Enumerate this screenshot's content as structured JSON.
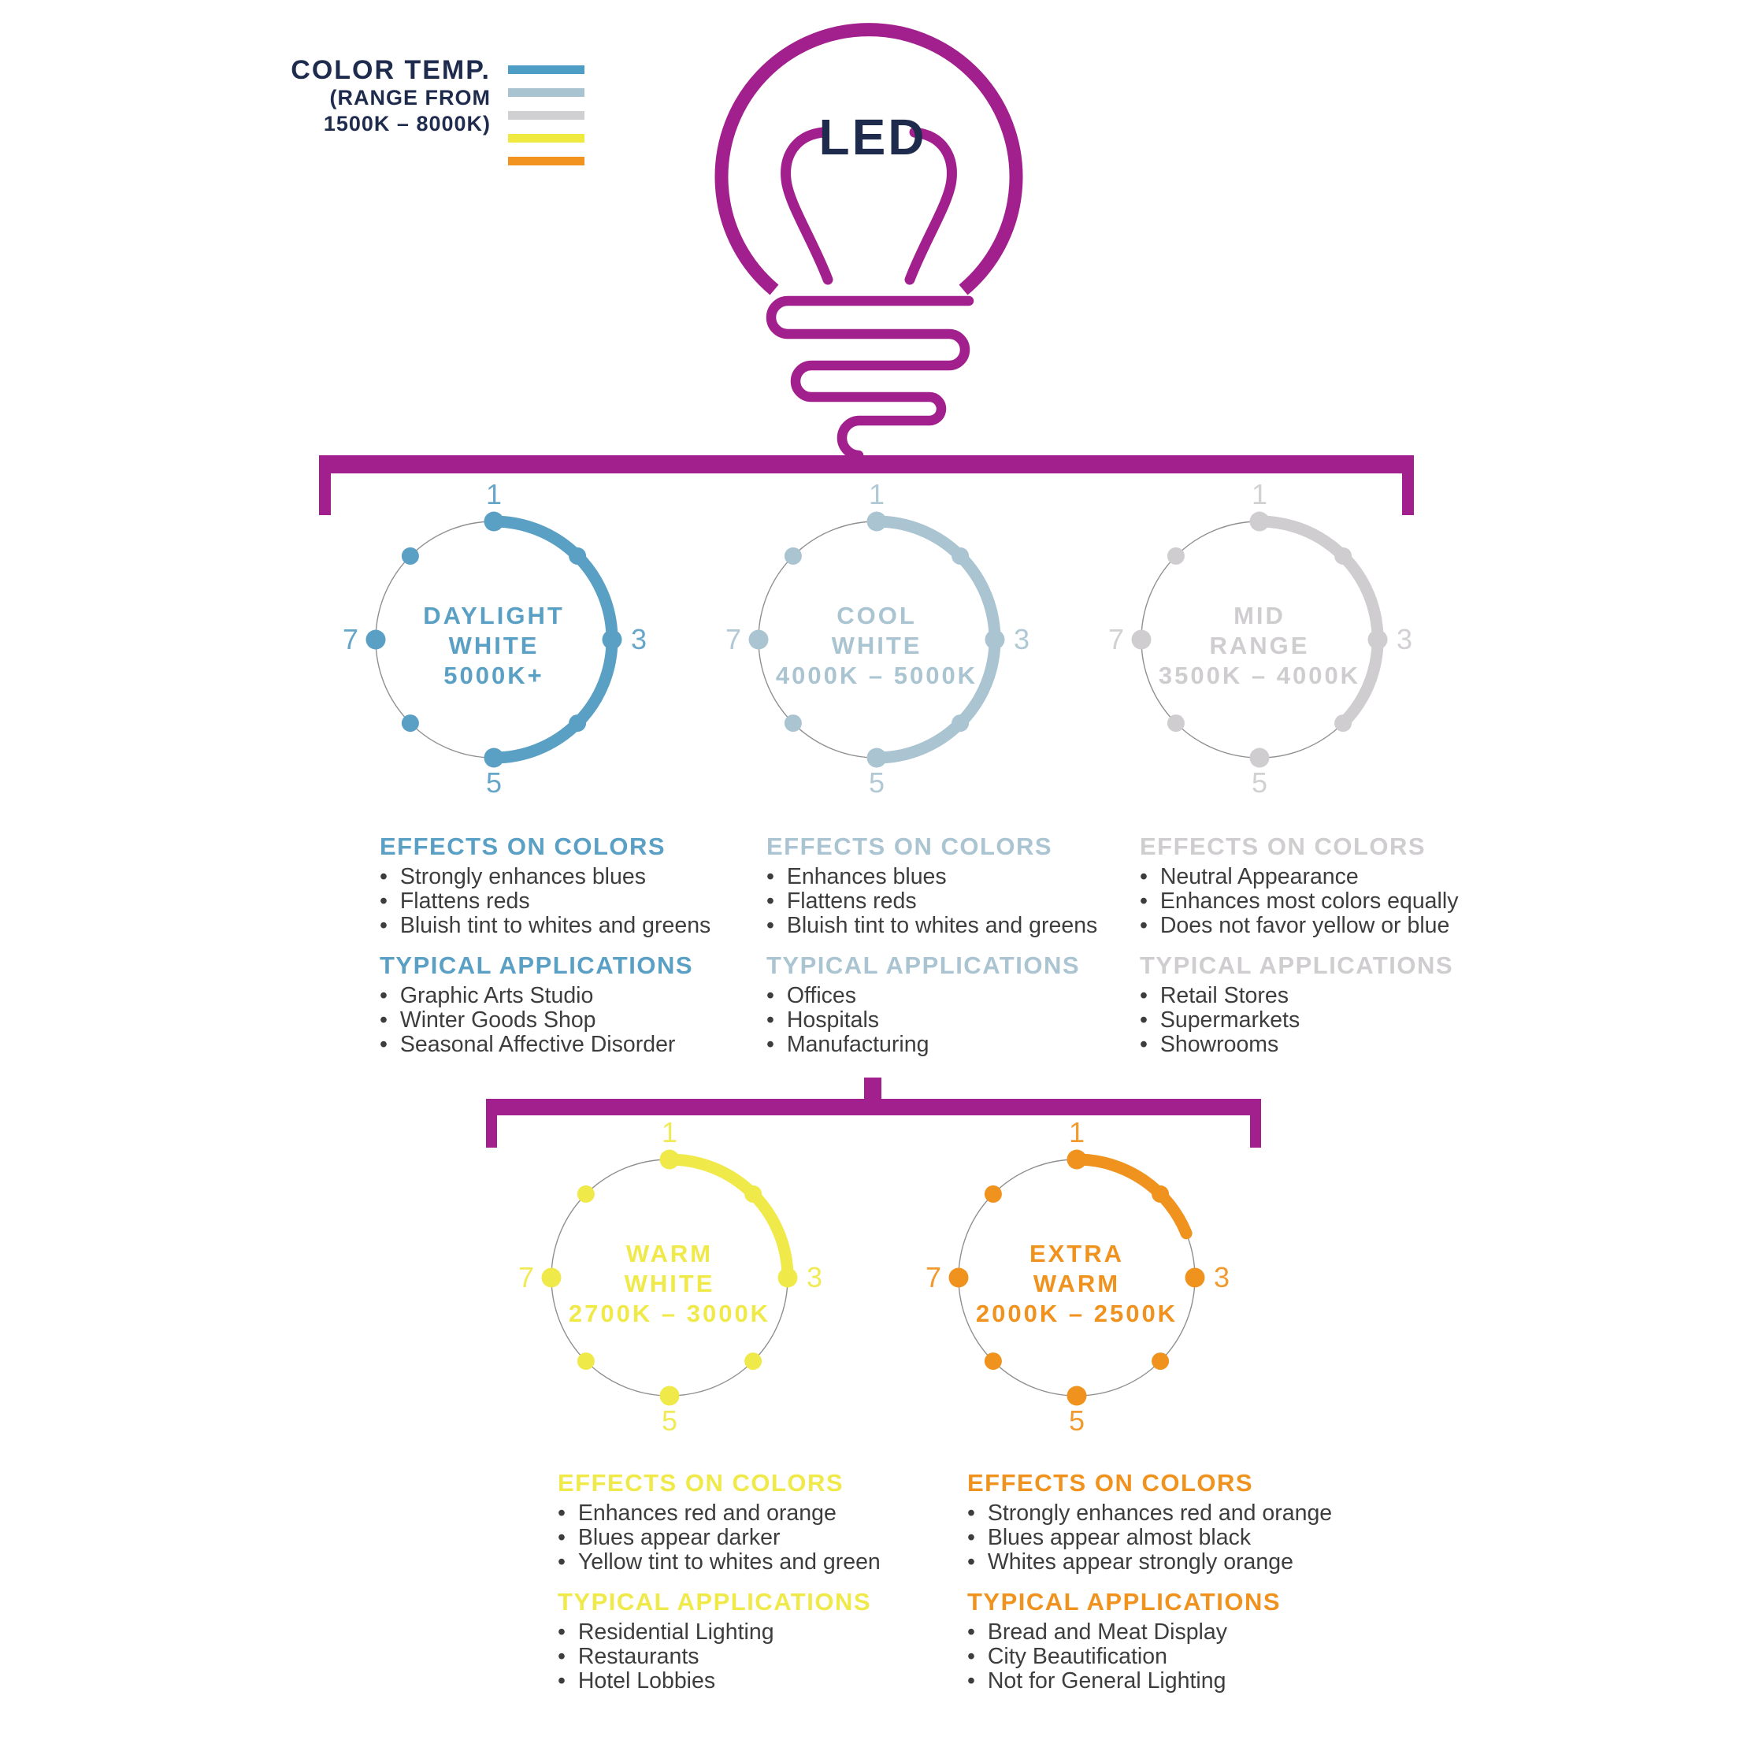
{
  "palette": {
    "magenta": "#a2208d",
    "navy": "#1e2b4d",
    "body_text": "#3d3d3d"
  },
  "legend": {
    "title": "COLOR TEMP.",
    "subtitle_line1": "(RANGE FROM",
    "subtitle_line2": "1500K – 8000K)",
    "bar_colors": [
      "#4e9dc4",
      "#a9c3d1",
      "#d0d0d2",
      "#f0e93f",
      "#f2921f"
    ]
  },
  "bulb": {
    "label": "LED"
  },
  "gauges": [
    {
      "name_lines": [
        "DAYLIGHT",
        "WHITE"
      ],
      "range": "5000K+",
      "color": "#5a9fc4",
      "arc_end_deg": 180,
      "tick_labels": [
        "1",
        "3",
        "5",
        "7"
      ],
      "effects_title": "EFFECTS ON COLORS",
      "effects": [
        "Strongly enhances blues",
        "Flattens reds",
        "Bluish tint to whites and greens"
      ],
      "applications_title": "TYPICAL APPLICATIONS",
      "applications": [
        "Graphic Arts Studio",
        "Winter Goods Shop",
        "Seasonal Affective Disorder"
      ]
    },
    {
      "name_lines": [
        "COOL",
        "WHITE"
      ],
      "range": "4000K – 5000K",
      "color": "#abc4d2",
      "arc_end_deg": 180,
      "tick_labels": [
        "1",
        "3",
        "5",
        "7"
      ],
      "effects_title": "EFFECTS ON COLORS",
      "effects": [
        "Enhances blues",
        "Flattens reds",
        "Bluish tint to whites and greens"
      ],
      "applications_title": "TYPICAL APPLICATIONS",
      "applications": [
        "Offices",
        "Hospitals",
        "Manufacturing"
      ]
    },
    {
      "name_lines": [
        "MID",
        "RANGE"
      ],
      "range": "3500K – 4000K",
      "color": "#cfcdcf",
      "arc_end_deg": 135,
      "tick_labels": [
        "1",
        "3",
        "5",
        "7"
      ],
      "effects_title": "EFFECTS ON COLORS",
      "effects": [
        "Neutral Appearance",
        "Enhances most colors equally",
        "Does not favor yellow or blue"
      ],
      "applications_title": "TYPICAL APPLICATIONS",
      "applications": [
        "Retail Stores",
        "Supermarkets",
        "Showrooms"
      ]
    },
    {
      "name_lines": [
        "WARM",
        "WHITE"
      ],
      "range": "2700K – 3000K",
      "color": "#f0e94a",
      "arc_end_deg": 90,
      "tick_labels": [
        "1",
        "3",
        "5",
        "7"
      ],
      "effects_title": "EFFECTS ON COLORS",
      "effects": [
        "Enhances red and orange",
        "Blues appear darker",
        "Yellow tint to whites and green"
      ],
      "applications_title": "TYPICAL APPLICATIONS",
      "applications": [
        "Residential Lighting",
        "Restaurants",
        "Hotel Lobbies"
      ]
    },
    {
      "name_lines": [
        "EXTRA",
        "WARM"
      ],
      "range": "2000K – 2500K",
      "color": "#f0921e",
      "arc_end_deg": 68,
      "tick_labels": [
        "1",
        "3",
        "5",
        "7"
      ],
      "effects_title": "EFFECTS ON COLORS",
      "effects": [
        "Strongly enhances red and orange",
        "Blues appear almost black",
        "Whites appear strongly orange"
      ],
      "applications_title": "TYPICAL APPLICATIONS",
      "applications": [
        "Bread and Meat Display",
        "City Beautification",
        "Not for General Lighting"
      ]
    }
  ]
}
